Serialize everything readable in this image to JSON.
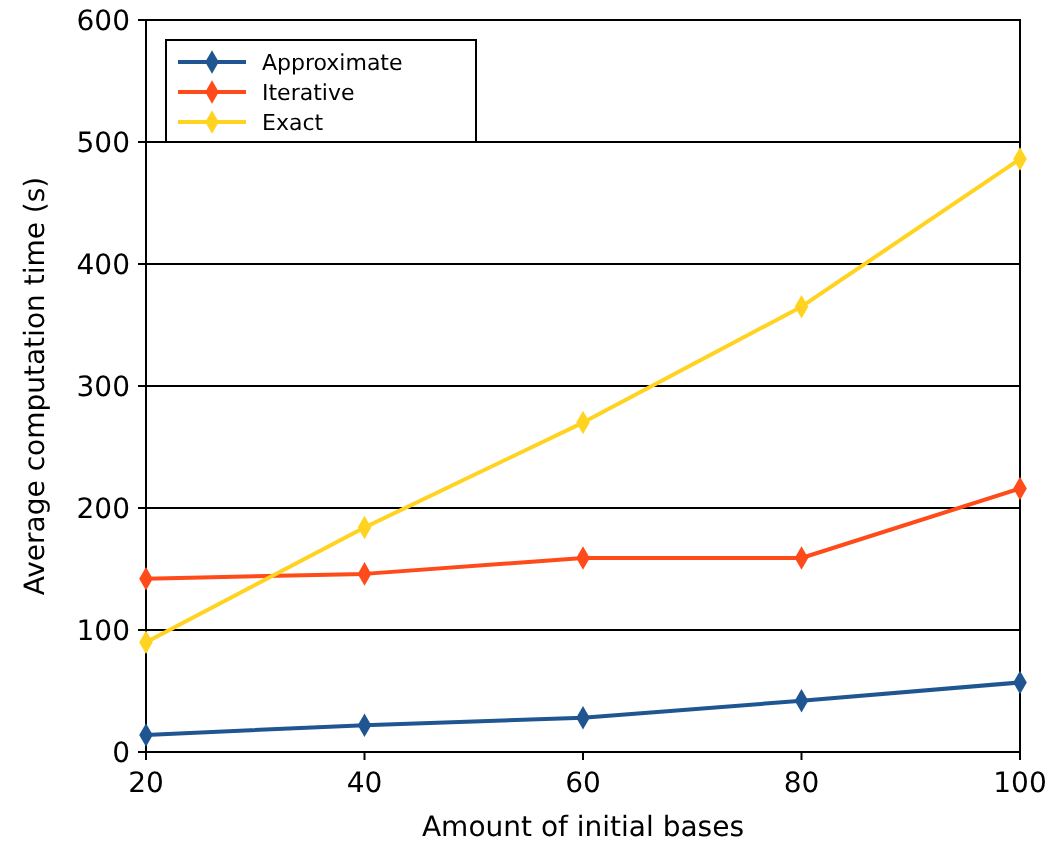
{
  "chart_data": {
    "type": "line",
    "xlabel": "Amount of initial bases",
    "ylabel": "Average computation time (s)",
    "x": [
      20,
      40,
      60,
      80,
      100
    ],
    "xlim": [
      20,
      100
    ],
    "xticks": [
      20,
      40,
      60,
      80,
      100
    ],
    "ylim": [
      0,
      600
    ],
    "yticks": [
      0,
      100,
      200,
      300,
      400,
      500,
      600
    ],
    "grid": "y",
    "legend": "top left",
    "marker": "diamond",
    "line_style": "solid",
    "series": [
      {
        "name": "Approximate",
        "color": "#1f5591",
        "values": [
          14,
          22,
          28,
          42,
          57
        ]
      },
      {
        "name": "Iterative",
        "color": "#ff4a1a",
        "values": [
          142,
          146,
          159,
          159,
          216
        ]
      },
      {
        "name": "Exact",
        "color": "#ffd320",
        "values": [
          90,
          184,
          270,
          365,
          486
        ]
      }
    ]
  }
}
